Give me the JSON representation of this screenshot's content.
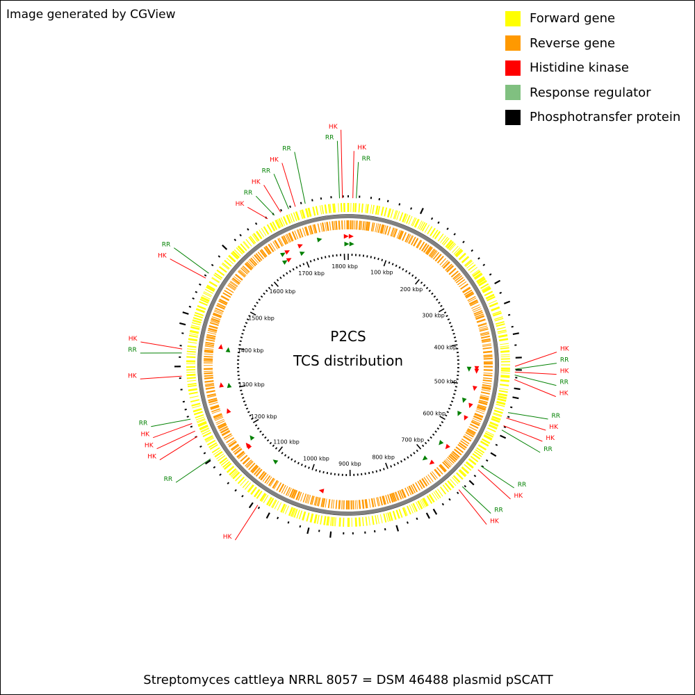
{
  "credit": "Image generated by CGView",
  "legend": [
    {
      "label": "Forward gene",
      "color": "#ffff00"
    },
    {
      "label": "Reverse gene",
      "color": "#ff9900"
    },
    {
      "label": "Histidine kinase",
      "color": "#ff0000"
    },
    {
      "label": "Response regulator",
      "color": "#80c080"
    },
    {
      "label": "Phosphotransfer protein",
      "color": "#000000"
    }
  ],
  "center": {
    "line1": "P2CS",
    "line2": "TCS distribution"
  },
  "caption": "Streptomyces cattleya NRRL 8057 = DSM 46488 plasmid pSCATT",
  "map": {
    "length_kbp": 1810,
    "label_colors": {
      "HK": "#ff0000",
      "RR": "#008000"
    },
    "forward_color": "#ffff00",
    "reverse_color": "#ff9900",
    "backbone_color": "#808080",
    "tick_labels": [
      "100 kbp",
      "200 kbp",
      "300 kbp",
      "400 kbp",
      "500 kbp",
      "600 kbp",
      "700 kbp",
      "800 kbp",
      "900 kbp",
      "1000 kbp",
      "1100 kbp",
      "1200 kbp",
      "1300 kbp",
      "1400 kbp",
      "1500 kbp",
      "1600 kbp",
      "1700 kbp",
      "1800 kbp"
    ],
    "callouts": [
      {
        "text": "RR",
        "kbp": 1795
      },
      {
        "text": "HK",
        "kbp": 1800
      },
      {
        "text": "HK",
        "kbp": 8
      },
      {
        "text": "RR",
        "kbp": 14
      },
      {
        "text": "RR",
        "kbp": 1735
      },
      {
        "text": "HK",
        "kbp": 1717
      },
      {
        "text": "RR",
        "kbp": 1705
      },
      {
        "text": "HK",
        "kbp": 1690
      },
      {
        "text": "RR",
        "kbp": 1678
      },
      {
        "text": "HK",
        "kbp": 1665
      },
      {
        "text": "RR",
        "kbp": 1525
      },
      {
        "text": "HK",
        "kbp": 1515
      },
      {
        "text": "HK",
        "kbp": 1385
      },
      {
        "text": "RR",
        "kbp": 1378
      },
      {
        "text": "HK",
        "kbp": 1338
      },
      {
        "text": "RR",
        "kbp": 1262
      },
      {
        "text": "HK",
        "kbp": 1254
      },
      {
        "text": "HK",
        "kbp": 1240
      },
      {
        "text": "HK",
        "kbp": 1230
      },
      {
        "text": "RR",
        "kbp": 1185
      },
      {
        "text": "HK",
        "kbp": 1070
      },
      {
        "text": "HK",
        "kbp": 455
      },
      {
        "text": "RR",
        "kbp": 460
      },
      {
        "text": "HK",
        "kbp": 465
      },
      {
        "text": "RR",
        "kbp": 470
      },
      {
        "text": "HK",
        "kbp": 478
      },
      {
        "text": "RR",
        "kbp": 536
      },
      {
        "text": "HK",
        "kbp": 546
      },
      {
        "text": "HK",
        "kbp": 560
      },
      {
        "text": "RR",
        "kbp": 568
      },
      {
        "text": "RR",
        "kbp": 640
      },
      {
        "text": "HK",
        "kbp": 648
      },
      {
        "text": "RR",
        "kbp": 688
      },
      {
        "text": "HK",
        "kbp": 696
      }
    ],
    "tcs_markers": [
      {
        "type": "HK",
        "kbp": 1805,
        "ring": 0
      },
      {
        "type": "HK",
        "kbp": 6,
        "ring": 0
      },
      {
        "type": "RR",
        "kbp": 1806,
        "ring": 1
      },
      {
        "type": "RR",
        "kbp": 8,
        "ring": 1
      },
      {
        "type": "RR",
        "kbp": 1745,
        "ring": 0
      },
      {
        "type": "HK",
        "kbp": 1700,
        "ring": 0
      },
      {
        "type": "RR",
        "kbp": 1698,
        "ring": 1
      },
      {
        "type": "HK",
        "kbp": 1668,
        "ring": 0
      },
      {
        "type": "HK",
        "kbp": 1663,
        "ring": 1
      },
      {
        "type": "RR",
        "kbp": 1657,
        "ring": 0
      },
      {
        "type": "RR",
        "kbp": 1652,
        "ring": 1
      },
      {
        "type": "HK",
        "kbp": 1398,
        "ring": 0
      },
      {
        "type": "RR",
        "kbp": 1393,
        "ring": 1
      },
      {
        "type": "HK",
        "kbp": 1312,
        "ring": 0
      },
      {
        "type": "RR",
        "kbp": 1308,
        "ring": 1
      },
      {
        "type": "HK",
        "kbp": 1252,
        "ring": 0
      },
      {
        "type": "RR",
        "kbp": 1172,
        "ring": 1
      },
      {
        "type": "HK",
        "kbp": 1164,
        "ring": 0
      },
      {
        "type": "HK",
        "kbp": 1160,
        "ring": 0
      },
      {
        "type": "RR",
        "kbp": 1092,
        "ring": 1
      },
      {
        "type": "HK",
        "kbp": 965,
        "ring": 0
      },
      {
        "type": "RR",
        "kbp": 462,
        "ring": 1
      },
      {
        "type": "HK",
        "kbp": 460,
        "ring": 0
      },
      {
        "type": "HK",
        "kbp": 466,
        "ring": 0
      },
      {
        "type": "HK",
        "kbp": 505,
        "ring": 0
      },
      {
        "type": "RR",
        "kbp": 538,
        "ring": 1
      },
      {
        "type": "HK",
        "kbp": 545,
        "ring": 0
      },
      {
        "type": "RR",
        "kbp": 572,
        "ring": 1
      },
      {
        "type": "HK",
        "kbp": 575,
        "ring": 0
      },
      {
        "type": "RR",
        "kbp": 655,
        "ring": 1
      },
      {
        "type": "HK",
        "kbp": 652,
        "ring": 0
      },
      {
        "type": "RR",
        "kbp": 708,
        "ring": 1
      },
      {
        "type": "HK",
        "kbp": 702,
        "ring": 0
      }
    ]
  }
}
